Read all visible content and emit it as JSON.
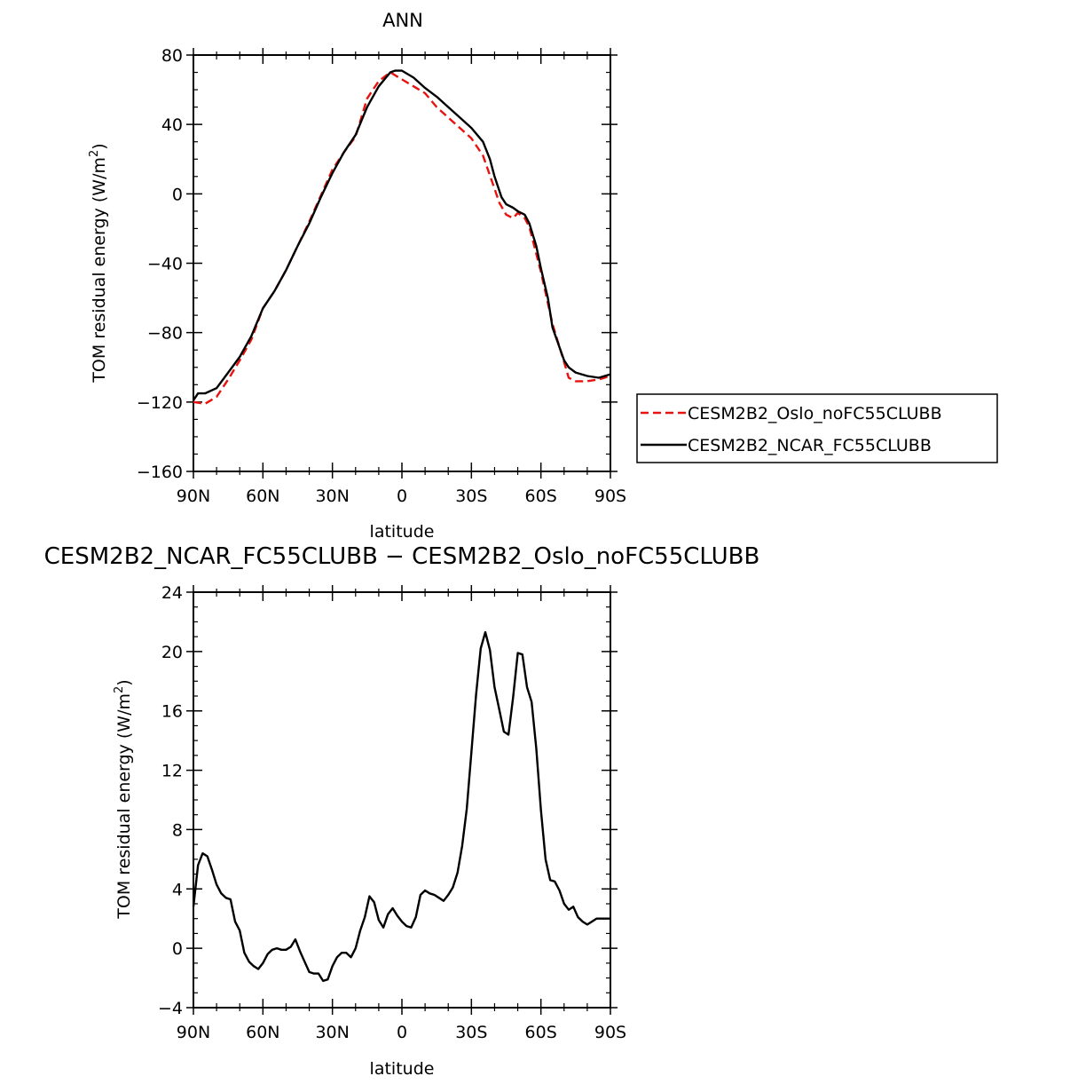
{
  "chart_data": [
    {
      "type": "line",
      "title": "ANN",
      "xlabel": "latitude",
      "ylabel": "TOM residual energy (W/m",
      "ylabel_sup": "2",
      "ylabel_end": ")",
      "xlim": [
        90,
        -90
      ],
      "ylim": [
        -160,
        80
      ],
      "x_ticks": [
        {
          "value": 90,
          "label": "90N"
        },
        {
          "value": 60,
          "label": "60N"
        },
        {
          "value": 30,
          "label": "30N"
        },
        {
          "value": 0,
          "label": "0"
        },
        {
          "value": -30,
          "label": "30S"
        },
        {
          "value": -60,
          "label": "60S"
        },
        {
          "value": -90,
          "label": "90S"
        }
      ],
      "y_ticks": [
        {
          "value": 80,
          "label": "80"
        },
        {
          "value": 40,
          "label": "40"
        },
        {
          "value": 0,
          "label": "0"
        },
        {
          "value": -40,
          "label": "−40"
        },
        {
          "value": -80,
          "label": "−80"
        },
        {
          "value": -120,
          "label": "−120"
        },
        {
          "value": -160,
          "label": "−160"
        }
      ],
      "legend_position": "right",
      "series": [
        {
          "name": "CESM2B2_Oslo_noFC55CLUBB",
          "color": "#e8120e",
          "dash": "dashed",
          "x": [
            90,
            85,
            80,
            75,
            70,
            65,
            60,
            55,
            50,
            45,
            40,
            35,
            30,
            25,
            20,
            15,
            10,
            5,
            0,
            -5,
            -10,
            -15,
            -20,
            -25,
            -30,
            -35,
            -40,
            -42,
            -45,
            -48,
            -50,
            -53,
            -55,
            -60,
            -65,
            -70,
            -72,
            -75,
            -80,
            -85,
            -90
          ],
          "y": [
            -120,
            -121,
            -117,
            -107,
            -96,
            -84,
            -66,
            -56,
            -44,
            -30,
            -16,
            -1,
            14,
            24,
            33,
            55,
            65,
            70,
            66,
            62,
            58,
            50,
            44,
            38,
            32,
            22,
            3,
            -5,
            -12,
            -14,
            -11,
            -14,
            -19,
            -45,
            -75,
            -97,
            -106,
            -108,
            -108,
            -107,
            -105
          ]
        },
        {
          "name": "CESM2B2_NCAR_FC55CLUBB",
          "color": "#000000",
          "dash": "solid",
          "x": [
            90,
            88,
            85,
            80,
            75,
            70,
            65,
            60,
            55,
            50,
            45,
            40,
            35,
            30,
            25,
            20,
            15,
            10,
            5,
            3,
            0,
            -5,
            -10,
            -15,
            -20,
            -25,
            -30,
            -35,
            -38,
            -40,
            -43,
            -45,
            -48,
            -50,
            -53,
            -55,
            -58,
            -60,
            -63,
            -65,
            -70,
            -72,
            -75,
            -80,
            -85,
            -90
          ],
          "y": [
            -119,
            -115,
            -115,
            -112,
            -103,
            -94,
            -82,
            -66,
            -56,
            -44,
            -30,
            -17,
            -2,
            12,
            24,
            34,
            50,
            62,
            70,
            71,
            71,
            67,
            61,
            56,
            50,
            44,
            38,
            30,
            20,
            10,
            -2,
            -6,
            -8,
            -10,
            -12,
            -17,
            -30,
            -43,
            -60,
            -77,
            -96,
            -100,
            -103,
            -105,
            -106,
            -104
          ]
        }
      ]
    },
    {
      "type": "line",
      "title": "CESM2B2_NCAR_FC55CLUBB − CESM2B2_Oslo_noFC55CLUBB",
      "xlabel": "latitude",
      "ylabel": "TOM residual energy (W/m",
      "ylabel_sup": "2",
      "ylabel_end": ")",
      "xlim": [
        90,
        -90
      ],
      "ylim": [
        -4,
        24
      ],
      "x_ticks": [
        {
          "value": 90,
          "label": "90N"
        },
        {
          "value": 60,
          "label": "60N"
        },
        {
          "value": 30,
          "label": "30N"
        },
        {
          "value": 0,
          "label": "0"
        },
        {
          "value": -30,
          "label": "30S"
        },
        {
          "value": -60,
          "label": "60S"
        },
        {
          "value": -90,
          "label": "90S"
        }
      ],
      "y_ticks": [
        {
          "value": 24,
          "label": "24"
        },
        {
          "value": 20,
          "label": "20"
        },
        {
          "value": 16,
          "label": "16"
        },
        {
          "value": 12,
          "label": "12"
        },
        {
          "value": 8,
          "label": "8"
        },
        {
          "value": 4,
          "label": "4"
        },
        {
          "value": 0,
          "label": "0"
        },
        {
          "value": -4,
          "label": "−4"
        }
      ],
      "series": [
        {
          "color": "#000000",
          "dash": "solid",
          "x": [
            90,
            88,
            86,
            84,
            82,
            80,
            78,
            76,
            74,
            72,
            70,
            68,
            66,
            64,
            62,
            60,
            58,
            56,
            54,
            52,
            50,
            48,
            46,
            44,
            42,
            40,
            38,
            36,
            34,
            32,
            30,
            28,
            26,
            24,
            22,
            20,
            18,
            16,
            14,
            12,
            10,
            8,
            6,
            4,
            2,
            0,
            -2,
            -4,
            -6,
            -8,
            -10,
            -12,
            -14,
            -16,
            -18,
            -20,
            -22,
            -24,
            -26,
            -28,
            -30,
            -32,
            -34,
            -36,
            -38,
            -40,
            -42,
            -44,
            -46,
            -48,
            -50,
            -52,
            -54,
            -56,
            -58,
            -60,
            -62,
            -64,
            -66,
            -68,
            -70,
            -72,
            -74,
            -76,
            -78,
            -80,
            -82,
            -84,
            -86,
            -88,
            -90
          ],
          "y": [
            2.8,
            5.6,
            6.4,
            6.2,
            5.3,
            4.3,
            3.7,
            3.4,
            3.3,
            1.8,
            1.2,
            -0.3,
            -0.9,
            -1.2,
            -1.4,
            -1.0,
            -0.4,
            -0.1,
            0.0,
            -0.1,
            -0.1,
            0.1,
            0.6,
            -0.2,
            -0.9,
            -1.6,
            -1.7,
            -1.7,
            -2.2,
            -2.1,
            -1.2,
            -0.6,
            -0.3,
            -0.3,
            -0.6,
            0.0,
            1.2,
            2.1,
            3.5,
            3.1,
            1.9,
            1.4,
            2.3,
            2.7,
            2.2,
            1.8,
            1.5,
            1.4,
            2.1,
            3.6,
            3.9,
            3.7,
            3.6,
            3.4,
            3.2,
            3.6,
            4.1,
            5.1,
            6.9,
            9.4,
            13.2,
            17.1,
            20.2,
            21.3,
            20.1,
            17.6,
            16.1,
            14.6,
            14.4,
            16.9,
            19.9,
            19.8,
            17.6,
            16.6,
            13.5,
            9.3,
            6.0,
            4.6,
            4.5,
            3.9,
            3.0,
            2.6,
            2.8,
            2.1,
            1.8,
            1.6,
            1.8,
            2.0,
            2.0,
            2.0,
            2.0
          ]
        }
      ]
    }
  ]
}
